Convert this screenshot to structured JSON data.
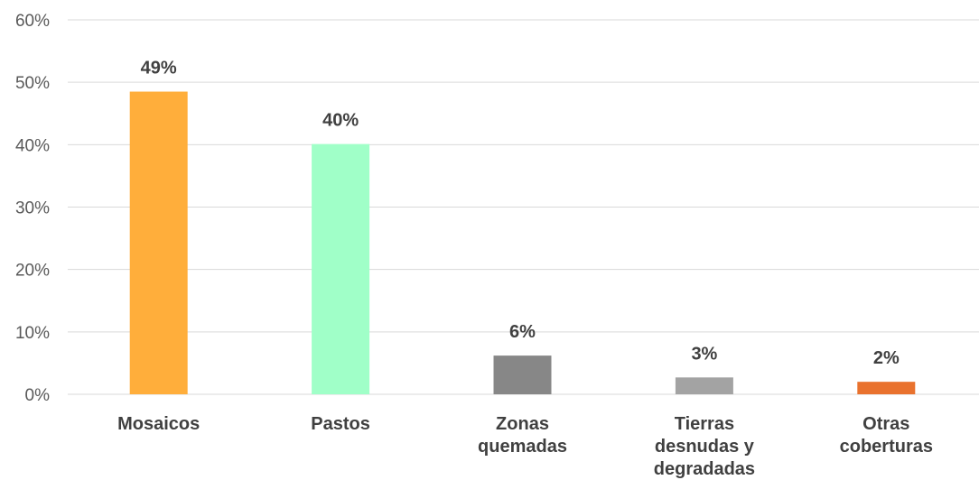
{
  "chart_data": {
    "type": "bar",
    "categories": [
      "Mosaicos",
      "Pastos",
      "Zonas quemadas",
      "Tierras desnudas y degradadas",
      "Otras coberturas"
    ],
    "category_lines": [
      [
        "Mosaicos"
      ],
      [
        "Pastos"
      ],
      [
        "Zonas",
        "quemadas"
      ],
      [
        "Tierras",
        "desnudas y",
        "degradadas"
      ],
      [
        "Otras",
        "coberturas"
      ]
    ],
    "values": [
      48.5,
      40.1,
      6.2,
      2.7,
      2.0
    ],
    "data_labels": [
      "49%",
      "40%",
      "6%",
      "3%",
      "2%"
    ],
    "colors": [
      "#FFAE3B",
      "#A0FFC8",
      "#878787",
      "#A3A3A3",
      "#E9722E"
    ],
    "y_ticks": [
      0,
      10,
      20,
      30,
      40,
      50,
      60
    ],
    "y_tick_labels": [
      "0%",
      "10%",
      "20%",
      "30%",
      "40%",
      "50%",
      "60%"
    ],
    "ylim": [
      0,
      60
    ],
    "grid": true,
    "legend": "none",
    "title": "",
    "xlabel": "",
    "ylabel": ""
  }
}
